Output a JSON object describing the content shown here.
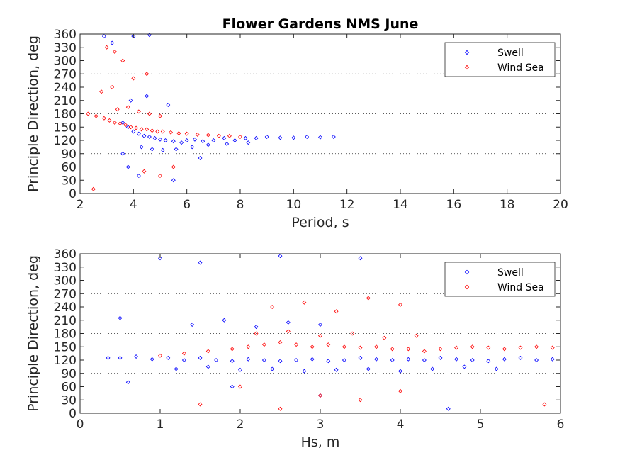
{
  "title": "Flower Gardens NMS June",
  "colors": {
    "swell": "#0000ff",
    "wind_sea": "#ff0000",
    "axis": "#262626"
  },
  "chart_data": [
    {
      "type": "scatter",
      "xlabel": "Period, s",
      "ylabel": "Principle Direction, deg",
      "xlim": [
        2,
        20
      ],
      "ylim": [
        0,
        360
      ],
      "xticks": [
        2,
        4,
        6,
        8,
        10,
        12,
        14,
        16,
        18,
        20
      ],
      "yticks": [
        0,
        30,
        60,
        90,
        120,
        150,
        180,
        210,
        240,
        270,
        300,
        330,
        360
      ],
      "grid_lines_y": [
        90,
        180,
        270
      ],
      "marker": "diamond",
      "legend_position": "top-right",
      "series": [
        {
          "name": "Swell",
          "color": "#0000ff",
          "x": [
            3.6,
            3.8,
            4.0,
            4.2,
            4.4,
            4.6,
            4.8,
            5.0,
            5.2,
            5.5,
            5.8,
            6.0,
            6.3,
            6.6,
            7.0,
            7.4,
            7.8,
            8.2,
            8.6,
            9.0,
            9.5,
            10.0,
            10.5,
            11.0,
            11.5,
            4.3,
            4.7,
            5.1,
            5.6,
            6.2,
            6.8,
            7.5,
            8.3,
            3.9,
            4.5,
            5.3,
            2.9,
            3.2,
            4.0,
            4.6,
            3.8,
            4.2,
            5.5,
            6.5,
            3.6
          ],
          "y": [
            160,
            150,
            140,
            135,
            130,
            128,
            125,
            122,
            120,
            118,
            115,
            120,
            122,
            118,
            120,
            125,
            120,
            125,
            125,
            128,
            126,
            126,
            128,
            127,
            128,
            105,
            100,
            98,
            100,
            105,
            110,
            112,
            115,
            210,
            220,
            200,
            355,
            340,
            355,
            358,
            60,
            40,
            30,
            80,
            90
          ]
        },
        {
          "name": "Wind Sea",
          "color": "#ff0000",
          "x": [
            2.3,
            2.6,
            2.9,
            3.1,
            3.3,
            3.5,
            3.7,
            3.9,
            4.1,
            4.3,
            4.5,
            4.7,
            4.9,
            5.1,
            5.4,
            5.7,
            6.0,
            6.4,
            6.8,
            7.2,
            7.6,
            8.0,
            3.4,
            3.8,
            4.2,
            4.6,
            5.0,
            3.0,
            3.3,
            3.6,
            4.0,
            4.5,
            2.8,
            3.2,
            4.4,
            5.0,
            5.5,
            2.5
          ],
          "y": [
            180,
            175,
            170,
            165,
            160,
            158,
            155,
            150,
            148,
            145,
            145,
            142,
            140,
            140,
            138,
            136,
            135,
            133,
            132,
            130,
            130,
            128,
            190,
            195,
            185,
            180,
            175,
            330,
            320,
            300,
            260,
            270,
            230,
            240,
            50,
            40,
            60,
            10
          ]
        }
      ]
    },
    {
      "type": "scatter",
      "xlabel": "Hs, m",
      "ylabel": "Principle Direction, deg",
      "xlim": [
        0,
        6
      ],
      "ylim": [
        0,
        360
      ],
      "xticks": [
        0,
        1,
        2,
        3,
        4,
        5,
        6
      ],
      "yticks": [
        0,
        30,
        60,
        90,
        120,
        150,
        180,
        210,
        240,
        270,
        300,
        330,
        360
      ],
      "grid_lines_y": [
        90,
        180,
        270
      ],
      "marker": "diamond",
      "legend_position": "top-right",
      "series": [
        {
          "name": "Swell",
          "color": "#0000ff",
          "x": [
            0.35,
            0.5,
            0.7,
            0.9,
            1.1,
            1.3,
            1.5,
            1.7,
            1.9,
            2.1,
            2.3,
            2.5,
            2.7,
            2.9,
            3.1,
            3.3,
            3.5,
            3.7,
            3.9,
            4.1,
            4.3,
            4.5,
            4.7,
            4.9,
            5.1,
            5.3,
            5.5,
            5.7,
            5.9,
            1.2,
            1.6,
            2.0,
            2.4,
            2.8,
            3.2,
            3.6,
            4.0,
            4.4,
            4.8,
            5.2,
            1.4,
            1.8,
            2.2,
            2.6,
            3.0,
            1.0,
            1.5,
            2.5,
            3.5,
            0.5,
            0.6,
            1.9,
            3.0,
            4.6
          ],
          "y": [
            125,
            125,
            128,
            122,
            125,
            120,
            125,
            120,
            118,
            122,
            120,
            118,
            120,
            122,
            118,
            120,
            125,
            122,
            120,
            122,
            120,
            125,
            122,
            120,
            118,
            122,
            125,
            120,
            122,
            100,
            105,
            98,
            100,
            95,
            98,
            100,
            95,
            100,
            105,
            100,
            200,
            210,
            195,
            205,
            200,
            350,
            340,
            355,
            350,
            215,
            70,
            60,
            40,
            10
          ]
        },
        {
          "name": "Wind Sea",
          "color": "#ff0000",
          "x": [
            1.0,
            1.3,
            1.6,
            1.9,
            2.1,
            2.3,
            2.5,
            2.7,
            2.9,
            3.1,
            3.3,
            3.5,
            3.7,
            3.9,
            4.1,
            4.3,
            4.5,
            4.7,
            4.9,
            5.1,
            5.3,
            5.5,
            5.7,
            5.9,
            2.2,
            2.6,
            3.0,
            3.4,
            3.8,
            4.2,
            2.4,
            2.8,
            3.2,
            3.6,
            4.0,
            2.0,
            3.0,
            4.0,
            1.5,
            2.5,
            3.5,
            5.8
          ],
          "y": [
            130,
            135,
            140,
            145,
            150,
            155,
            160,
            155,
            150,
            155,
            150,
            148,
            150,
            145,
            145,
            140,
            145,
            148,
            150,
            148,
            145,
            148,
            150,
            148,
            180,
            185,
            175,
            180,
            170,
            175,
            240,
            250,
            230,
            260,
            245,
            60,
            40,
            50,
            20,
            10,
            30,
            20
          ]
        }
      ]
    }
  ]
}
